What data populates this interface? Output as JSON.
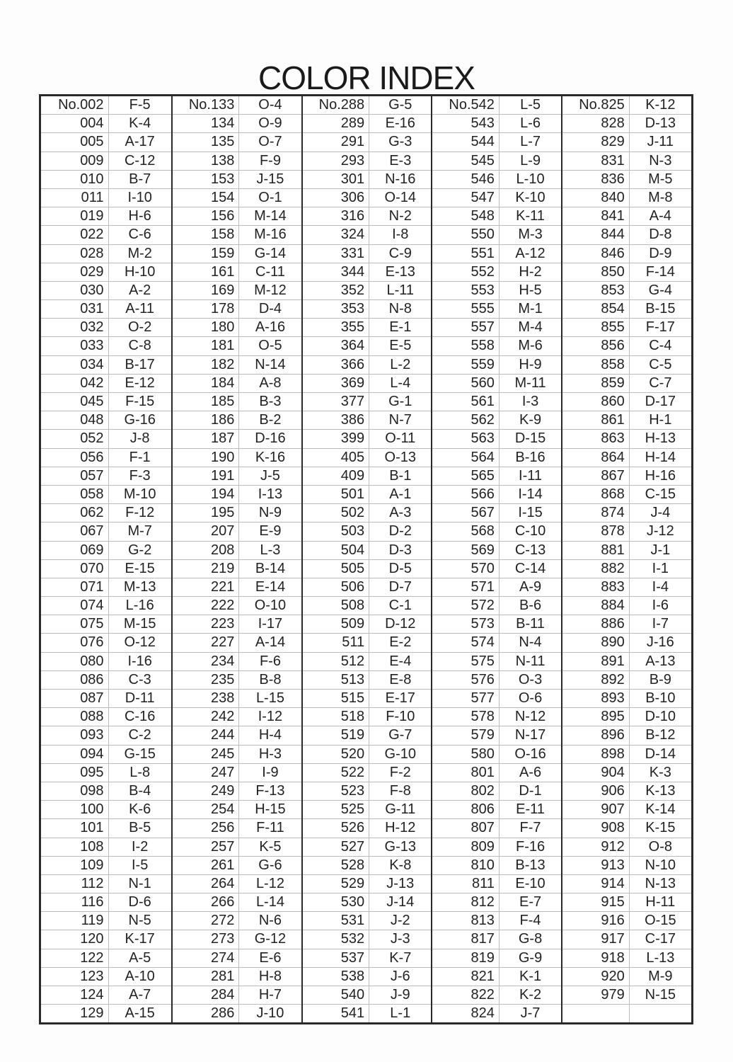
{
  "title": "COLOR INDEX",
  "groups": [
    [
      [
        "No.002",
        "F-5"
      ],
      [
        "004",
        "K-4"
      ],
      [
        "005",
        "A-17"
      ],
      [
        "009",
        "C-12"
      ],
      [
        "010",
        "B-7"
      ],
      [
        "011",
        "I-10"
      ],
      [
        "019",
        "H-6"
      ],
      [
        "022",
        "C-6"
      ],
      [
        "028",
        "M-2"
      ],
      [
        "029",
        "H-10"
      ],
      [
        "030",
        "A-2"
      ],
      [
        "031",
        "A-11"
      ],
      [
        "032",
        "O-2"
      ],
      [
        "033",
        "C-8"
      ],
      [
        "034",
        "B-17"
      ],
      [
        "042",
        "E-12"
      ],
      [
        "045",
        "F-15"
      ],
      [
        "048",
        "G-16"
      ],
      [
        "052",
        "J-8"
      ],
      [
        "056",
        "F-1"
      ],
      [
        "057",
        "F-3"
      ],
      [
        "058",
        "M-10"
      ],
      [
        "062",
        "F-12"
      ],
      [
        "067",
        "M-7"
      ],
      [
        "069",
        "G-2"
      ],
      [
        "070",
        "E-15"
      ],
      [
        "071",
        "M-13"
      ],
      [
        "074",
        "L-16"
      ],
      [
        "075",
        "M-15"
      ],
      [
        "076",
        "O-12"
      ],
      [
        "080",
        "I-16"
      ],
      [
        "086",
        "C-3"
      ],
      [
        "087",
        "D-11"
      ],
      [
        "088",
        "C-16"
      ],
      [
        "093",
        "C-2"
      ],
      [
        "094",
        "G-15"
      ],
      [
        "095",
        "L-8"
      ],
      [
        "098",
        "B-4"
      ],
      [
        "100",
        "K-6"
      ],
      [
        "101",
        "B-5"
      ],
      [
        "108",
        "I-2"
      ],
      [
        "109",
        "I-5"
      ],
      [
        "112",
        "N-1"
      ],
      [
        "116",
        "D-6"
      ],
      [
        "119",
        "N-5"
      ],
      [
        "120",
        "K-17"
      ],
      [
        "122",
        "A-5"
      ],
      [
        "123",
        "A-10"
      ],
      [
        "124",
        "A-7"
      ],
      [
        "129",
        "A-15"
      ]
    ],
    [
      [
        "No.133",
        "O-4"
      ],
      [
        "134",
        "O-9"
      ],
      [
        "135",
        "O-7"
      ],
      [
        "138",
        "F-9"
      ],
      [
        "153",
        "J-15"
      ],
      [
        "154",
        "O-1"
      ],
      [
        "156",
        "M-14"
      ],
      [
        "158",
        "M-16"
      ],
      [
        "159",
        "G-14"
      ],
      [
        "161",
        "C-11"
      ],
      [
        "169",
        "M-12"
      ],
      [
        "178",
        "D-4"
      ],
      [
        "180",
        "A-16"
      ],
      [
        "181",
        "O-5"
      ],
      [
        "182",
        "N-14"
      ],
      [
        "184",
        "A-8"
      ],
      [
        "185",
        "B-3"
      ],
      [
        "186",
        "B-2"
      ],
      [
        "187",
        "D-16"
      ],
      [
        "190",
        "K-16"
      ],
      [
        "191",
        "J-5"
      ],
      [
        "194",
        "I-13"
      ],
      [
        "195",
        "N-9"
      ],
      [
        "207",
        "E-9"
      ],
      [
        "208",
        "L-3"
      ],
      [
        "219",
        "B-14"
      ],
      [
        "221",
        "E-14"
      ],
      [
        "222",
        "O-10"
      ],
      [
        "223",
        "I-17"
      ],
      [
        "227",
        "A-14"
      ],
      [
        "234",
        "F-6"
      ],
      [
        "235",
        "B-8"
      ],
      [
        "238",
        "L-15"
      ],
      [
        "242",
        "I-12"
      ],
      [
        "244",
        "H-4"
      ],
      [
        "245",
        "H-3"
      ],
      [
        "247",
        "I-9"
      ],
      [
        "249",
        "F-13"
      ],
      [
        "254",
        "H-15"
      ],
      [
        "256",
        "F-11"
      ],
      [
        "257",
        "K-5"
      ],
      [
        "261",
        "G-6"
      ],
      [
        "264",
        "L-12"
      ],
      [
        "266",
        "L-14"
      ],
      [
        "272",
        "N-6"
      ],
      [
        "273",
        "G-12"
      ],
      [
        "274",
        "E-6"
      ],
      [
        "281",
        "H-8"
      ],
      [
        "284",
        "H-7"
      ],
      [
        "286",
        "J-10"
      ]
    ],
    [
      [
        "No.288",
        "G-5"
      ],
      [
        "289",
        "E-16"
      ],
      [
        "291",
        "G-3"
      ],
      [
        "293",
        "E-3"
      ],
      [
        "301",
        "N-16"
      ],
      [
        "306",
        "O-14"
      ],
      [
        "316",
        "N-2"
      ],
      [
        "324",
        "I-8"
      ],
      [
        "331",
        "C-9"
      ],
      [
        "344",
        "E-13"
      ],
      [
        "352",
        "L-11"
      ],
      [
        "353",
        "N-8"
      ],
      [
        "355",
        "E-1"
      ],
      [
        "364",
        "E-5"
      ],
      [
        "366",
        "L-2"
      ],
      [
        "369",
        "L-4"
      ],
      [
        "377",
        "G-1"
      ],
      [
        "386",
        "N-7"
      ],
      [
        "399",
        "O-11"
      ],
      [
        "405",
        "O-13"
      ],
      [
        "409",
        "B-1"
      ],
      [
        "501",
        "A-1"
      ],
      [
        "502",
        "A-3"
      ],
      [
        "503",
        "D-2"
      ],
      [
        "504",
        "D-3"
      ],
      [
        "505",
        "D-5"
      ],
      [
        "506",
        "D-7"
      ],
      [
        "508",
        "C-1"
      ],
      [
        "509",
        "D-12"
      ],
      [
        "511",
        "E-2"
      ],
      [
        "512",
        "E-4"
      ],
      [
        "513",
        "E-8"
      ],
      [
        "515",
        "E-17"
      ],
      [
        "518",
        "F-10"
      ],
      [
        "519",
        "G-7"
      ],
      [
        "520",
        "G-10"
      ],
      [
        "522",
        "F-2"
      ],
      [
        "523",
        "F-8"
      ],
      [
        "525",
        "G-11"
      ],
      [
        "526",
        "H-12"
      ],
      [
        "527",
        "G-13"
      ],
      [
        "528",
        "K-8"
      ],
      [
        "529",
        "J-13"
      ],
      [
        "530",
        "J-14"
      ],
      [
        "531",
        "J-2"
      ],
      [
        "532",
        "J-3"
      ],
      [
        "537",
        "K-7"
      ],
      [
        "538",
        "J-6"
      ],
      [
        "540",
        "J-9"
      ],
      [
        "541",
        "L-1"
      ]
    ],
    [
      [
        "No.542",
        "L-5"
      ],
      [
        "543",
        "L-6"
      ],
      [
        "544",
        "L-7"
      ],
      [
        "545",
        "L-9"
      ],
      [
        "546",
        "L-10"
      ],
      [
        "547",
        "K-10"
      ],
      [
        "548",
        "K-11"
      ],
      [
        "550",
        "M-3"
      ],
      [
        "551",
        "A-12"
      ],
      [
        "552",
        "H-2"
      ],
      [
        "553",
        "H-5"
      ],
      [
        "555",
        "M-1"
      ],
      [
        "557",
        "M-4"
      ],
      [
        "558",
        "M-6"
      ],
      [
        "559",
        "H-9"
      ],
      [
        "560",
        "M-11"
      ],
      [
        "561",
        "I-3"
      ],
      [
        "562",
        "K-9"
      ],
      [
        "563",
        "D-15"
      ],
      [
        "564",
        "B-16"
      ],
      [
        "565",
        "I-11"
      ],
      [
        "566",
        "I-14"
      ],
      [
        "567",
        "I-15"
      ],
      [
        "568",
        "C-10"
      ],
      [
        "569",
        "C-13"
      ],
      [
        "570",
        "C-14"
      ],
      [
        "571",
        "A-9"
      ],
      [
        "572",
        "B-6"
      ],
      [
        "573",
        "B-11"
      ],
      [
        "574",
        "N-4"
      ],
      [
        "575",
        "N-11"
      ],
      [
        "576",
        "O-3"
      ],
      [
        "577",
        "O-6"
      ],
      [
        "578",
        "N-12"
      ],
      [
        "579",
        "N-17"
      ],
      [
        "580",
        "O-16"
      ],
      [
        "801",
        "A-6"
      ],
      [
        "802",
        "D-1"
      ],
      [
        "806",
        "E-11"
      ],
      [
        "807",
        "F-7"
      ],
      [
        "809",
        "F-16"
      ],
      [
        "810",
        "B-13"
      ],
      [
        "811",
        "E-10"
      ],
      [
        "812",
        "E-7"
      ],
      [
        "813",
        "F-4"
      ],
      [
        "817",
        "G-8"
      ],
      [
        "819",
        "G-9"
      ],
      [
        "821",
        "K-1"
      ],
      [
        "822",
        "K-2"
      ],
      [
        "824",
        "J-7"
      ]
    ],
    [
      [
        "No.825",
        "K-12"
      ],
      [
        "828",
        "D-13"
      ],
      [
        "829",
        "J-11"
      ],
      [
        "831",
        "N-3"
      ],
      [
        "836",
        "M-5"
      ],
      [
        "840",
        "M-8"
      ],
      [
        "841",
        "A-4"
      ],
      [
        "844",
        "D-8"
      ],
      [
        "846",
        "D-9"
      ],
      [
        "850",
        "F-14"
      ],
      [
        "853",
        "G-4"
      ],
      [
        "854",
        "B-15"
      ],
      [
        "855",
        "F-17"
      ],
      [
        "856",
        "C-4"
      ],
      [
        "858",
        "C-5"
      ],
      [
        "859",
        "C-7"
      ],
      [
        "860",
        "D-17"
      ],
      [
        "861",
        "H-1"
      ],
      [
        "863",
        "H-13"
      ],
      [
        "864",
        "H-14"
      ],
      [
        "867",
        "H-16"
      ],
      [
        "868",
        "C-15"
      ],
      [
        "874",
        "J-4"
      ],
      [
        "878",
        "J-12"
      ],
      [
        "881",
        "J-1"
      ],
      [
        "882",
        "I-1"
      ],
      [
        "883",
        "I-4"
      ],
      [
        "884",
        "I-6"
      ],
      [
        "886",
        "I-7"
      ],
      [
        "890",
        "J-16"
      ],
      [
        "891",
        "A-13"
      ],
      [
        "892",
        "B-9"
      ],
      [
        "893",
        "B-10"
      ],
      [
        "895",
        "D-10"
      ],
      [
        "896",
        "B-12"
      ],
      [
        "898",
        "D-14"
      ],
      [
        "904",
        "K-3"
      ],
      [
        "906",
        "K-13"
      ],
      [
        "907",
        "K-14"
      ],
      [
        "908",
        "K-15"
      ],
      [
        "912",
        "O-8"
      ],
      [
        "913",
        "N-10"
      ],
      [
        "914",
        "N-13"
      ],
      [
        "915",
        "H-11"
      ],
      [
        "916",
        "O-15"
      ],
      [
        "917",
        "C-17"
      ],
      [
        "918",
        "L-13"
      ],
      [
        "920",
        "M-9"
      ],
      [
        "979",
        "N-15"
      ],
      [
        "",
        ""
      ]
    ]
  ]
}
